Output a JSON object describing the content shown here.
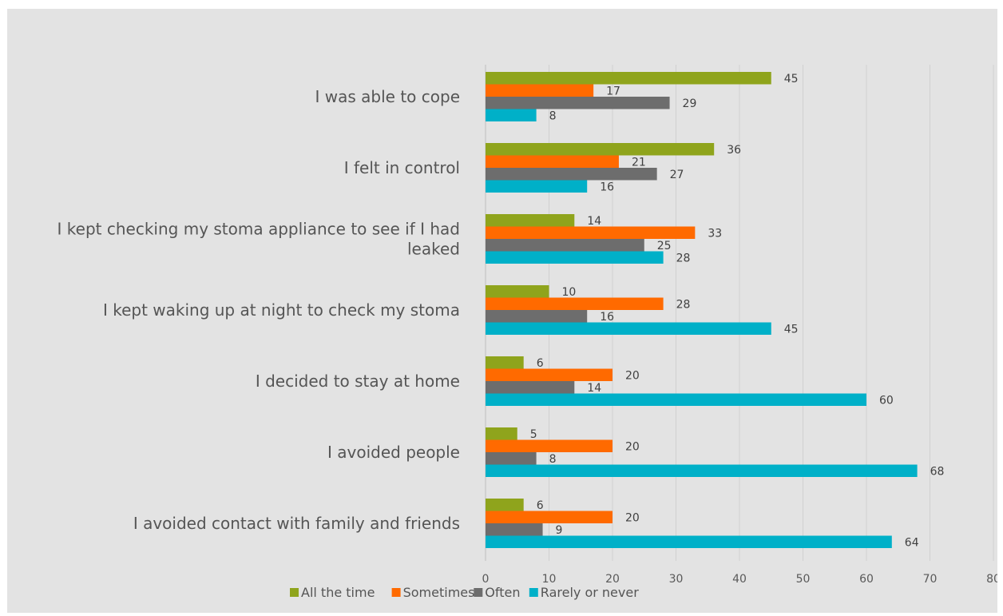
{
  "chart_data": {
    "type": "bar",
    "orientation": "horizontal",
    "categories": [
      "I was able to cope",
      "I felt in control",
      "I kept checking my stoma appliance to see if I had leaked",
      "I kept waking up at night to check my stoma",
      "I decided to stay at home",
      "I avoided people",
      "I avoided contact with family and friends"
    ],
    "series": [
      {
        "name": "All the time",
        "color": "#8fa41c",
        "values": [
          45,
          36,
          14,
          10,
          6,
          5,
          6
        ]
      },
      {
        "name": "Sometimes",
        "color": "#ff6a00",
        "values": [
          17,
          21,
          33,
          28,
          20,
          20,
          20
        ]
      },
      {
        "name": "Often",
        "color": "#6d6d6d",
        "values": [
          29,
          27,
          25,
          16,
          14,
          8,
          9
        ]
      },
      {
        "name": "Rarely or never",
        "color": "#00b0c8",
        "values": [
          8,
          16,
          28,
          45,
          60,
          68,
          64
        ]
      }
    ],
    "xlim": [
      0,
      80
    ],
    "xticks": [
      "0",
      "10",
      "20",
      "30",
      "40",
      "50",
      "60",
      "70",
      "80"
    ],
    "grid": true,
    "legend": "bottom",
    "title": "",
    "xlabel": "",
    "ylabel": ""
  }
}
